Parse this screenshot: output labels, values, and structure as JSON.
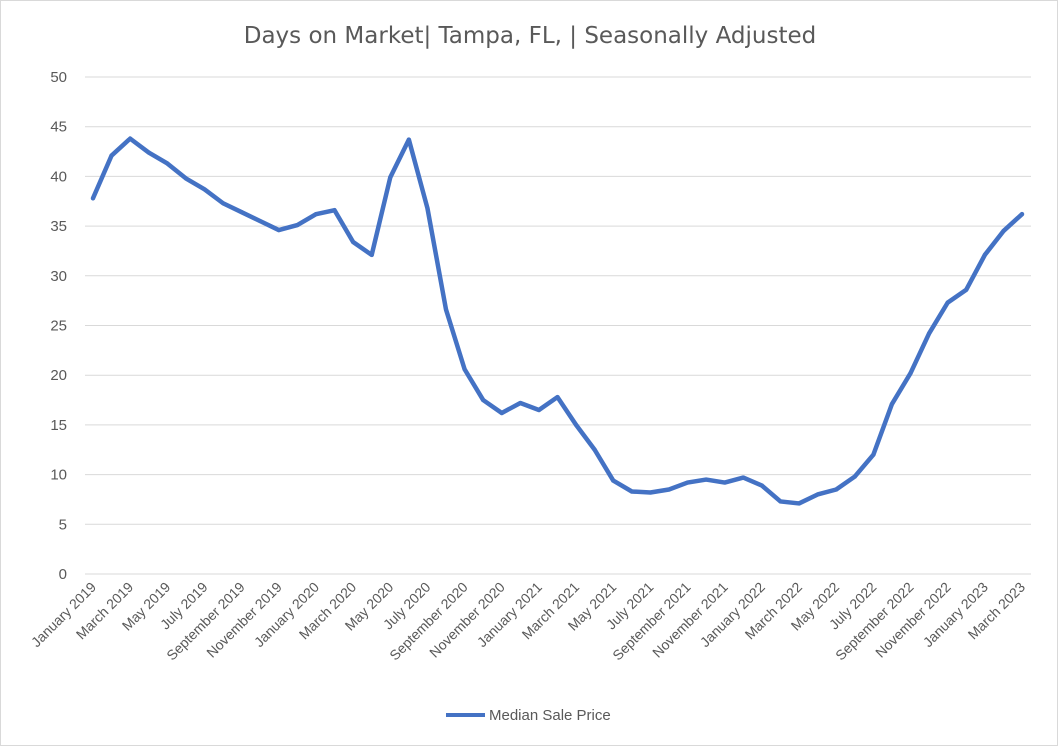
{
  "chart_data": {
    "type": "line",
    "title": "Days on Market| Tampa, FL, | Seasonally Adjusted",
    "xlabel": "",
    "ylabel": "",
    "ylim": [
      0,
      50
    ],
    "yticks": [
      0,
      5,
      10,
      15,
      20,
      25,
      30,
      35,
      40,
      45,
      50
    ],
    "grid": true,
    "legend_position": "bottom",
    "color": "#4472C4",
    "x": [
      "January 2019",
      "February 2019",
      "March 2019",
      "April 2019",
      "May 2019",
      "June 2019",
      "July 2019",
      "August 2019",
      "September 2019",
      "October 2019",
      "November 2019",
      "December 2019",
      "January 2020",
      "February 2020",
      "March 2020",
      "April 2020",
      "May 2020",
      "June 2020",
      "July 2020",
      "August 2020",
      "September 2020",
      "October 2020",
      "November 2020",
      "December 2020",
      "January 2021",
      "February 2021",
      "March 2021",
      "April 2021",
      "May 2021",
      "June 2021",
      "July 2021",
      "August 2021",
      "September 2021",
      "October 2021",
      "November 2021",
      "December 2021",
      "January 2022",
      "February 2022",
      "March 2022",
      "April 2022",
      "May 2022",
      "June 2022",
      "July 2022",
      "August 2022",
      "September 2022",
      "October 2022",
      "November 2022",
      "December 2022",
      "January 2023",
      "February 2023",
      "March 2023"
    ],
    "xtick_labels": [
      "January 2019",
      "March 2019",
      "May 2019",
      "July 2019",
      "September 2019",
      "November 2019",
      "January 2020",
      "March 2020",
      "May 2020",
      "July 2020",
      "September 2020",
      "November 2020",
      "January 2021",
      "March 2021",
      "May 2021",
      "July 2021",
      "September 2021",
      "November 2021",
      "January 2022",
      "March 2022",
      "May 2022",
      "July 2022",
      "September 2022",
      "November 2022",
      "January 2023",
      "March 2023"
    ],
    "series": [
      {
        "name": "Median Sale Price",
        "values": [
          37.8,
          42.1,
          43.8,
          42.4,
          41.3,
          39.8,
          38.7,
          37.3,
          36.4,
          35.5,
          34.6,
          35.1,
          36.2,
          36.6,
          33.4,
          32.1,
          39.9,
          43.7,
          36.8,
          26.6,
          20.6,
          17.5,
          16.2,
          17.2,
          16.5,
          17.8,
          15.0,
          12.5,
          9.4,
          8.3,
          8.2,
          8.5,
          9.2,
          9.5,
          9.2,
          9.7,
          8.9,
          7.3,
          7.1,
          8.0,
          8.5,
          9.8,
          12.0,
          17.1,
          20.2,
          24.2,
          27.3,
          28.6,
          32.1,
          34.5,
          36.2
        ]
      }
    ]
  }
}
